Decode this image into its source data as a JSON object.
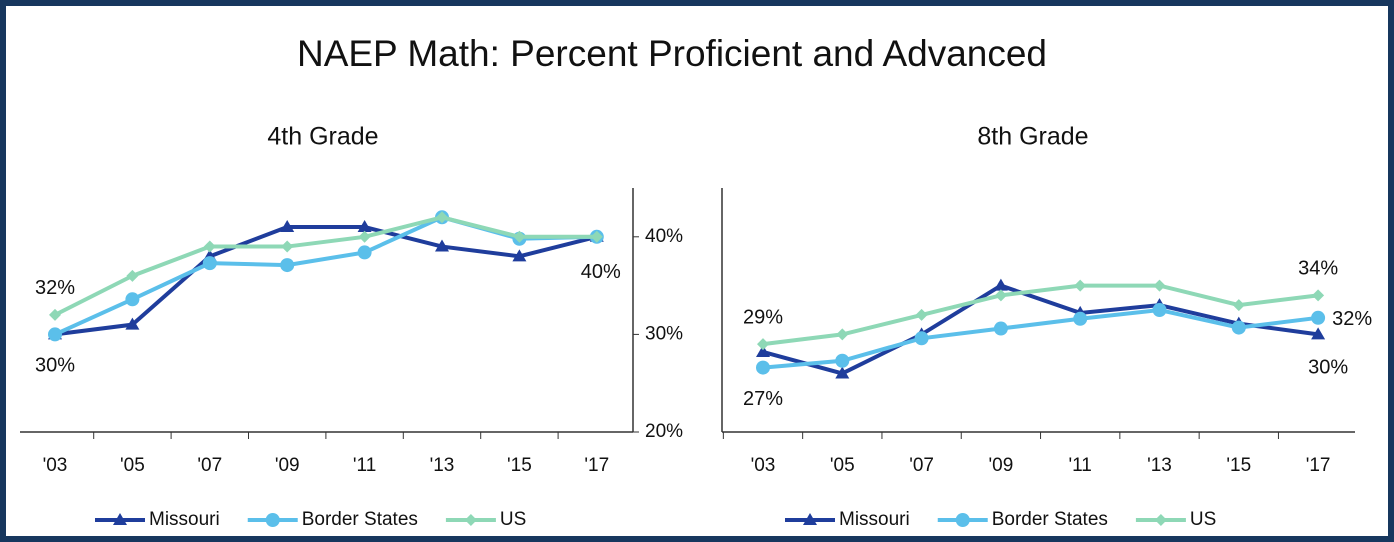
{
  "title": "NAEP Math: Percent Proficient and Advanced",
  "chart_data": [
    {
      "type": "line",
      "title": "4th Grade",
      "categories": [
        "'03",
        "'05",
        "'07",
        "'09",
        "'11",
        "'13",
        "'15",
        "'17"
      ],
      "ylim": [
        20,
        45
      ],
      "yticks": [
        {
          "value": 20,
          "label": "20%"
        },
        {
          "value": 30,
          "label": "30%"
        },
        {
          "value": 40,
          "label": "40%"
        }
      ],
      "legend": "bottom",
      "series": [
        {
          "name": "Missouri",
          "color": "#1f3d9c",
          "marker": "triangle",
          "values": [
            30,
            31,
            38,
            41,
            41,
            39,
            38,
            40
          ]
        },
        {
          "name": "Border States",
          "color": "#5bbfea",
          "marker": "circle",
          "values": [
            30,
            33.6,
            37.3,
            37.1,
            38.4,
            42,
            39.8,
            40
          ],
          "value_labels": [
            "30%",
            null,
            null,
            null,
            null,
            null,
            null,
            "40%"
          ]
        },
        {
          "name": "US",
          "color": "#8ed8b6",
          "marker": "diamond",
          "values": [
            32,
            36,
            39,
            39,
            40,
            42,
            40,
            40
          ],
          "value_labels": [
            "32%",
            null,
            null,
            null,
            null,
            null,
            null,
            null
          ]
        }
      ]
    },
    {
      "type": "line",
      "title": "8th Grade",
      "categories": [
        "'03",
        "'05",
        "'07",
        "'09",
        "'11",
        "'13",
        "'15",
        "'17"
      ],
      "ylim": [
        20,
        45
      ],
      "legend": "bottom",
      "series": [
        {
          "name": "Missouri",
          "color": "#1f3d9c",
          "marker": "triangle",
          "values": [
            28.2,
            26,
            30,
            35,
            32.2,
            33,
            31.1,
            30
          ],
          "value_labels": [
            null,
            null,
            null,
            null,
            null,
            null,
            null,
            "30%"
          ]
        },
        {
          "name": "Border States",
          "color": "#5bbfea",
          "marker": "circle",
          "values": [
            26.6,
            27.3,
            29.6,
            30.6,
            31.6,
            32.5,
            30.7,
            31.7
          ],
          "value_labels": [
            "27%",
            null,
            null,
            null,
            null,
            null,
            null,
            "32%"
          ]
        },
        {
          "name": "US",
          "color": "#8ed8b6",
          "marker": "diamond",
          "values": [
            29,
            30,
            32,
            34,
            35,
            35,
            33,
            34
          ],
          "value_labels": [
            "29%",
            null,
            null,
            null,
            null,
            null,
            null,
            "34%"
          ]
        }
      ]
    }
  ]
}
